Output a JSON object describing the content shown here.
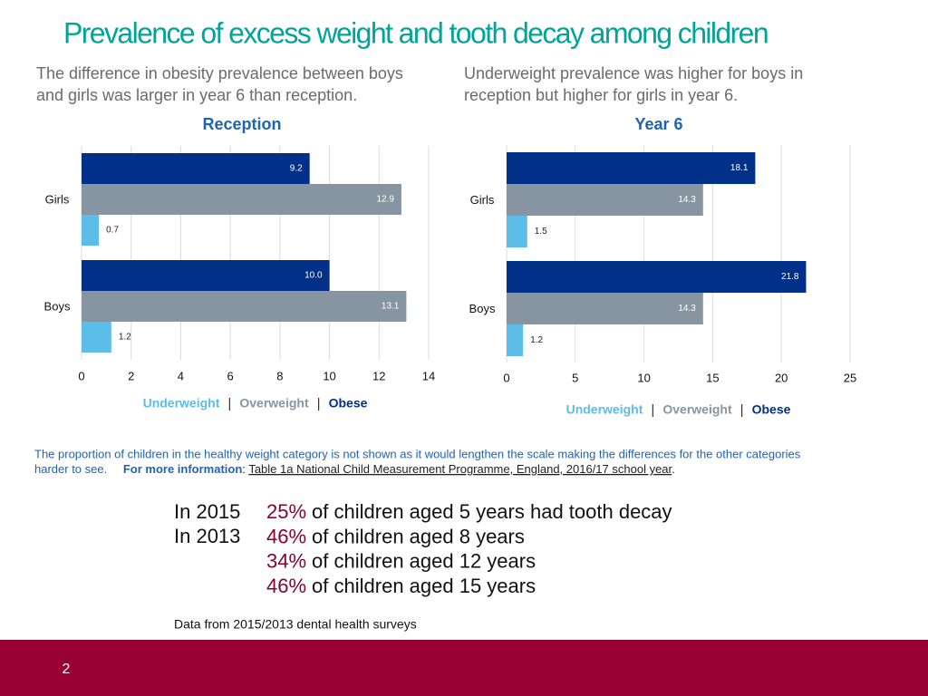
{
  "title": "Prevalence of excess weight and tooth decay among children",
  "notes": [
    [
      "The difference in obesity prevalence between boys",
      "and girls was larger in year 6 than reception."
    ],
    [
      "Underweight prevalence was higher for boys in",
      "reception but higher for girls in year 6."
    ]
  ],
  "chart_data": [
    {
      "type": "bar",
      "orientation": "horizontal",
      "title": "Reception",
      "categories": [
        "Girls",
        "Boys"
      ],
      "series": [
        {
          "name": "Underweight",
          "color": "#5bbde8",
          "values": [
            0.7,
            1.2
          ]
        },
        {
          "name": "Overweight",
          "color": "#8794a1",
          "values": [
            12.9,
            13.1
          ]
        },
        {
          "name": "Obese",
          "color": "#003087",
          "values": [
            9.2,
            10.0
          ],
          "value_labels": [
            "9.2",
            "10.0"
          ]
        }
      ],
      "xlim": [
        0,
        14
      ],
      "xticks": [
        0,
        2,
        4,
        6,
        8,
        10,
        12,
        14
      ],
      "grid": true
    },
    {
      "type": "bar",
      "orientation": "horizontal",
      "title": "Year 6",
      "categories": [
        "Girls",
        "Boys"
      ],
      "series": [
        {
          "name": "Underweight",
          "color": "#5bbde8",
          "values": [
            1.5,
            1.2
          ]
        },
        {
          "name": "Overweight",
          "color": "#8794a1",
          "values": [
            14.3,
            14.3
          ]
        },
        {
          "name": "Obese",
          "color": "#003087",
          "values": [
            18.1,
            21.8
          ]
        }
      ],
      "xlim": [
        0,
        25
      ],
      "xticks": [
        0,
        5,
        10,
        15,
        20,
        25
      ],
      "grid": true
    }
  ],
  "footnote": {
    "lines": [
      "The proportion of children in the healthy weight category is not shown as it would lengthen the scale making the differences for the other categories",
      "harder to see."
    ],
    "more_label": "For more information",
    "colon": ":",
    "link": "Table 1a National Child Measurement Programme, England, 2016/17 school year",
    "end": "."
  },
  "stats": [
    {
      "year": "In 2015",
      "percent": "25%",
      "text": "of children aged 5 years had tooth decay"
    },
    {
      "year": "In 2013",
      "percent": "46%",
      "text": "of children aged 8 years"
    },
    {
      "percent": "34%",
      "text": "of children aged 12 years"
    },
    {
      "percent": "46%",
      "text": "of children aged 15 years"
    }
  ],
  "source": "Data from 2015/2013 dental health surveys",
  "page_number": "2"
}
